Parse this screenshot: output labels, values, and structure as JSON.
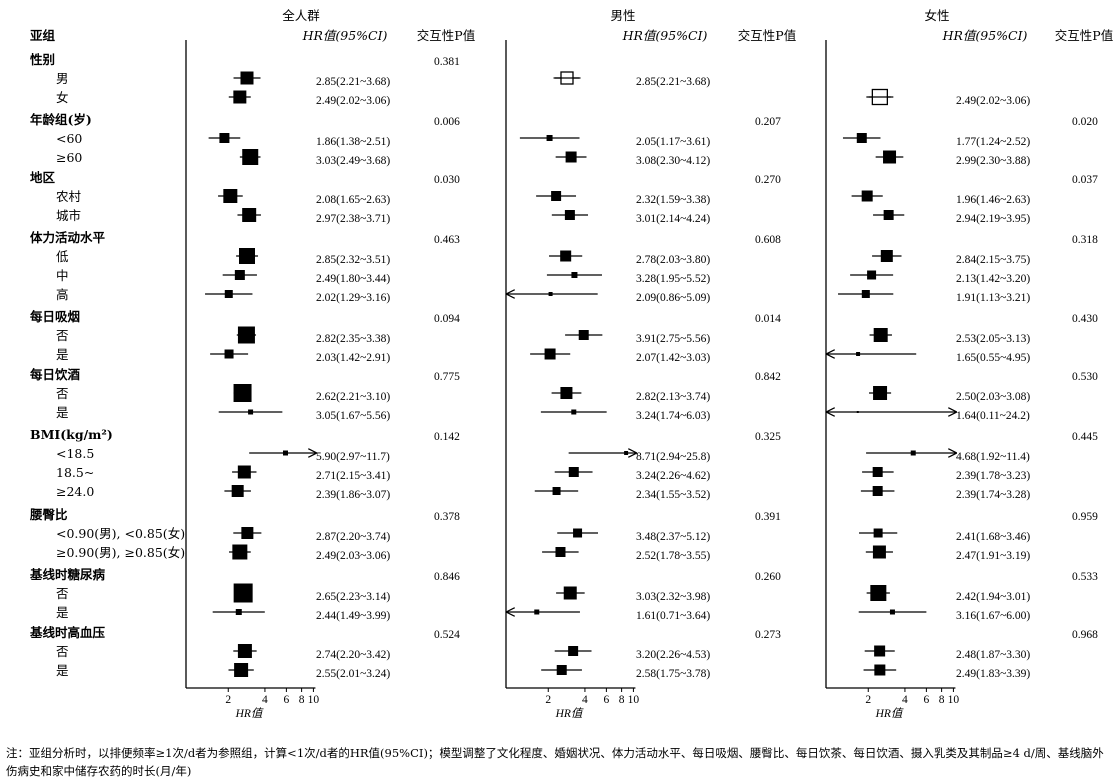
{
  "chart_data": {
    "type": "forest",
    "x_scale": "log",
    "xlim": [
      0.9,
      10.5
    ],
    "x_ticks": [
      2,
      4,
      6,
      8,
      10
    ],
    "xlabel": "HR值",
    "header": {
      "subgroup": "亚组",
      "hr_col": "HR值(95%CI)",
      "p_col": "交互性P值"
    },
    "panels": [
      {
        "title": "全人群"
      },
      {
        "title": "男性"
      },
      {
        "title": "女性"
      }
    ],
    "groups": [
      {
        "name": "性别",
        "p": [
          "0.381",
          "",
          ""
        ],
        "rows": [
          {
            "label": "男",
            "vals": [
              [
                2.85,
                2.21,
                3.68
              ],
              [
                2.85,
                2.21,
                3.68
              ],
              null
            ],
            "text": [
              "2.85(2.21~3.68)",
              "2.85(2.21~3.68)",
              ""
            ],
            "sz": [
              13,
              12,
              0
            ],
            "ref": [
              false,
              true,
              false
            ]
          },
          {
            "label": "女",
            "vals": [
              [
                2.49,
                2.02,
                3.06
              ],
              null,
              [
                2.49,
                2.02,
                3.06
              ]
            ],
            "text": [
              "2.49(2.02~3.06)",
              "",
              "2.49(2.02~3.06)"
            ],
            "sz": [
              13,
              0,
              15
            ],
            "ref": [
              false,
              false,
              true
            ]
          }
        ]
      },
      {
        "name": "年龄组(岁)",
        "p": [
          "0.006",
          "0.207",
          "0.020"
        ],
        "rows": [
          {
            "label": "<60",
            "vals": [
              [
                1.86,
                1.38,
                2.51
              ],
              [
                2.05,
                1.17,
                3.61
              ],
              [
                1.77,
                1.24,
                2.52
              ]
            ],
            "text": [
              "1.86(1.38~2.51)",
              "2.05(1.17~3.61)",
              "1.77(1.24~2.52)"
            ],
            "sz": [
              10,
              6,
              10
            ],
            "ref": [
              false,
              false,
              false
            ]
          },
          {
            "label": "≥60",
            "vals": [
              [
                3.03,
                2.49,
                3.68
              ],
              [
                3.08,
                2.3,
                4.12
              ],
              [
                2.99,
                2.3,
                3.88
              ]
            ],
            "text": [
              "3.03(2.49~3.68)",
              "3.08(2.30~4.12)",
              "2.99(2.30~3.88)"
            ],
            "sz": [
              16,
              11,
              13
            ],
            "ref": [
              false,
              false,
              false
            ]
          }
        ]
      },
      {
        "name": "地区",
        "p": [
          "0.030",
          "0.270",
          "0.037"
        ],
        "rows": [
          {
            "label": "农村",
            "vals": [
              [
                2.08,
                1.65,
                2.63
              ],
              [
                2.32,
                1.59,
                3.38
              ],
              [
                1.96,
                1.46,
                2.63
              ]
            ],
            "text": [
              "2.08(1.65~2.63)",
              "2.32(1.59~3.38)",
              "1.96(1.46~2.63)"
            ],
            "sz": [
              14,
              10,
              11
            ],
            "ref": [
              false,
              false,
              false
            ]
          },
          {
            "label": "城市",
            "vals": [
              [
                2.97,
                2.38,
                3.71
              ],
              [
                3.01,
                2.14,
                4.24
              ],
              [
                2.94,
                2.19,
                3.95
              ]
            ],
            "text": [
              "2.97(2.38~3.71)",
              "3.01(2.14~4.24)",
              "2.94(2.19~3.95)"
            ],
            "sz": [
              14,
              10,
              10
            ],
            "ref": [
              false,
              false,
              false
            ]
          }
        ]
      },
      {
        "name": "体力活动水平",
        "p": [
          "0.463",
          "0.608",
          "0.318"
        ],
        "rows": [
          {
            "label": "低",
            "vals": [
              [
                2.85,
                2.32,
                3.51
              ],
              [
                2.78,
                2.03,
                3.8
              ],
              [
                2.84,
                2.15,
                3.75
              ]
            ],
            "text": [
              "2.85(2.32~3.51)",
              "2.78(2.03~3.80)",
              "2.84(2.15~3.75)"
            ],
            "sz": [
              16,
              11,
              12
            ],
            "ref": [
              false,
              false,
              false
            ]
          },
          {
            "label": "中",
            "vals": [
              [
                2.49,
                1.8,
                3.44
              ],
              [
                3.28,
                1.95,
                5.52
              ],
              [
                2.13,
                1.42,
                3.2
              ]
            ],
            "text": [
              "2.49(1.80~3.44)",
              "3.28(1.95~5.52)",
              "2.13(1.42~3.20)"
            ],
            "sz": [
              10,
              6,
              9
            ],
            "ref": [
              false,
              false,
              false
            ]
          },
          {
            "label": "高",
            "vals": [
              [
                2.02,
                1.29,
                3.16
              ],
              [
                2.09,
                0.86,
                5.09
              ],
              [
                1.91,
                1.13,
                3.21
              ]
            ],
            "text": [
              "2.02(1.29~3.16)",
              "2.09(0.86~5.09)",
              "1.91(1.13~3.21)"
            ],
            "sz": [
              8,
              4,
              8
            ],
            "ref": [
              false,
              false,
              false
            ]
          }
        ]
      },
      {
        "name": "每日吸烟",
        "p": [
          "0.094",
          "0.014",
          "0.430"
        ],
        "rows": [
          {
            "label": "否",
            "vals": [
              [
                2.82,
                2.35,
                3.38
              ],
              [
                3.91,
                2.75,
                5.56
              ],
              [
                2.53,
                2.05,
                3.13
              ]
            ],
            "text": [
              "2.82(2.35~3.38)",
              "3.91(2.75~5.56)",
              "2.53(2.05~3.13)"
            ],
            "sz": [
              17,
              10,
              14
            ],
            "ref": [
              false,
              false,
              false
            ]
          },
          {
            "label": "是",
            "vals": [
              [
                2.03,
                1.42,
                2.91
              ],
              [
                2.07,
                1.42,
                3.03
              ],
              [
                1.65,
                0.55,
                4.95
              ]
            ],
            "text": [
              "2.03(1.42~2.91)",
              "2.07(1.42~3.03)",
              "1.65(0.55~4.95)"
            ],
            "sz": [
              9,
              11,
              4
            ],
            "ref": [
              false,
              false,
              false
            ]
          }
        ]
      },
      {
        "name": "每日饮酒",
        "p": [
          "0.775",
          "0.842",
          "0.530"
        ],
        "rows": [
          {
            "label": "否",
            "vals": [
              [
                2.62,
                2.21,
                3.1
              ],
              [
                2.82,
                2.13,
                3.74
              ],
              [
                2.5,
                2.03,
                3.08
              ]
            ],
            "text": [
              "2.62(2.21~3.10)",
              "2.82(2.13~3.74)",
              "2.50(2.03~3.08)"
            ],
            "sz": [
              18,
              12,
              14
            ],
            "ref": [
              false,
              false,
              false
            ]
          },
          {
            "label": "是",
            "vals": [
              [
                3.05,
                1.67,
                5.56
              ],
              [
                3.24,
                1.74,
                6.03
              ],
              [
                1.64,
                0.11,
                24.2
              ]
            ],
            "text": [
              "3.05(1.67~5.56)",
              "3.24(1.74~6.03)",
              "1.64(0.11~24.2)"
            ],
            "sz": [
              5,
              5,
              2
            ],
            "ref": [
              false,
              false,
              false
            ]
          }
        ]
      },
      {
        "name": "BMI(kg/m²)",
        "p": [
          "0.142",
          "0.325",
          "0.445"
        ],
        "rows": [
          {
            "label": "<18.5",
            "vals": [
              [
                5.9,
                2.97,
                11.7
              ],
              [
                8.71,
                2.94,
                25.8
              ],
              [
                4.68,
                1.92,
                11.4
              ]
            ],
            "text": [
              "5.90(2.97~11.7)",
              "8.71(2.94~25.8)",
              "4.68(1.92~11.4)"
            ],
            "sz": [
              5,
              4,
              5
            ],
            "ref": [
              false,
              false,
              false
            ]
          },
          {
            "label": "18.5~",
            "vals": [
              [
                2.71,
                2.15,
                3.41
              ],
              [
                3.24,
                2.26,
                4.62
              ],
              [
                2.39,
                1.78,
                3.23
              ]
            ],
            "text": [
              "2.71(2.15~3.41)",
              "3.24(2.26~4.62)",
              "2.39(1.78~3.23)"
            ],
            "sz": [
              13,
              10,
              10
            ],
            "ref": [
              false,
              false,
              false
            ]
          },
          {
            "label": "≥24.0",
            "vals": [
              [
                2.39,
                1.86,
                3.07
              ],
              [
                2.34,
                1.55,
                3.52
              ],
              [
                2.39,
                1.74,
                3.28
              ]
            ],
            "text": [
              "2.39(1.86~3.07)",
              "2.34(1.55~3.52)",
              "2.39(1.74~3.28)"
            ],
            "sz": [
              12,
              8,
              10
            ],
            "ref": [
              false,
              false,
              false
            ]
          }
        ]
      },
      {
        "name": "腰臀比",
        "p": [
          "0.378",
          "0.391",
          "0.959"
        ],
        "rows": [
          {
            "label": "<0.90(男), <0.85(女)",
            "vals": [
              [
                2.87,
                2.2,
                3.74
              ],
              [
                3.48,
                2.37,
                5.12
              ],
              [
                2.41,
                1.68,
                3.46
              ]
            ],
            "text": [
              "2.87(2.20~3.74)",
              "3.48(2.37~5.12)",
              "2.41(1.68~3.46)"
            ],
            "sz": [
              12,
              9,
              9
            ],
            "ref": [
              false,
              false,
              false
            ]
          },
          {
            "label": "≥0.90(男), ≥0.85(女)",
            "vals": [
              [
                2.49,
                2.03,
                3.06
              ],
              [
                2.52,
                1.78,
                3.55
              ],
              [
                2.47,
                1.91,
                3.19
              ]
            ],
            "text": [
              "2.49(2.03~3.06)",
              "2.52(1.78~3.55)",
              "2.47(1.91~3.19)"
            ],
            "sz": [
              15,
              10,
              13
            ],
            "ref": [
              false,
              false,
              false
            ]
          }
        ]
      },
      {
        "name": "基线时糖尿病",
        "p": [
          "0.846",
          "0.260",
          "0.533"
        ],
        "rows": [
          {
            "label": "否",
            "vals": [
              [
                2.65,
                2.23,
                3.14
              ],
              [
                3.03,
                2.32,
                3.98
              ],
              [
                2.42,
                1.94,
                3.01
              ]
            ],
            "text": [
              "2.65(2.23~3.14)",
              "3.03(2.32~3.98)",
              "2.42(1.94~3.01)"
            ],
            "sz": [
              19,
              13,
              16
            ],
            "ref": [
              false,
              false,
              false
            ]
          },
          {
            "label": "是",
            "vals": [
              [
                2.44,
                1.49,
                3.99
              ],
              [
                1.61,
                0.71,
                3.64
              ],
              [
                3.16,
                1.67,
                6.0
              ]
            ],
            "text": [
              "2.44(1.49~3.99)",
              "1.61(0.71~3.64)",
              "3.16(1.67~6.00)"
            ],
            "sz": [
              6,
              5,
              5
            ],
            "ref": [
              false,
              false,
              false
            ]
          }
        ]
      },
      {
        "name": "基线时高血压",
        "p": [
          "0.524",
          "0.273",
          "0.968"
        ],
        "rows": [
          {
            "label": "否",
            "vals": [
              [
                2.74,
                2.2,
                3.42
              ],
              [
                3.2,
                2.26,
                4.53
              ],
              [
                2.48,
                1.87,
                3.3
              ]
            ],
            "text": [
              "2.74(2.20~3.42)",
              "3.20(2.26~4.53)",
              "2.48(1.87~3.30)"
            ],
            "sz": [
              14,
              10,
              11
            ],
            "ref": [
              false,
              false,
              false
            ]
          },
          {
            "label": "是",
            "vals": [
              [
                2.55,
                2.01,
                3.24
              ],
              [
                2.58,
                1.75,
                3.78
              ],
              [
                2.49,
                1.83,
                3.39
              ]
            ],
            "text": [
              "2.55(2.01~3.24)",
              "2.58(1.75~3.78)",
              "2.49(1.83~3.39)"
            ],
            "sz": [
              14,
              10,
              11
            ],
            "ref": [
              false,
              false,
              false
            ]
          }
        ]
      }
    ]
  },
  "footnote": "注：亚组分析时，以排便频率≥1次/d者为参照组，计算<1次/d者的HR值(95%CI)；模型调整了文化程度、婚姻状况、体力活动水平、每日吸烟、腰臀比、每日饮茶、每日饮酒、摄入乳类及其制品≥4 d/周、基线脑外伤病史和家中储存农药的时长(月/年)"
}
